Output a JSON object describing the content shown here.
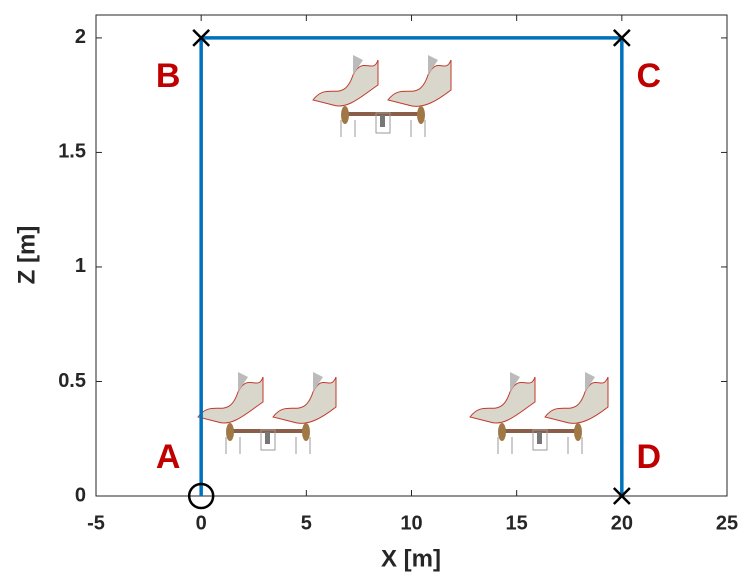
{
  "chart_data": {
    "type": "line",
    "x_label": "X [m]",
    "y_label": "Z [m]",
    "x": [
      0,
      0,
      20,
      20
    ],
    "y": [
      0,
      2,
      2,
      0
    ],
    "point_labels": [
      "A",
      "B",
      "C",
      "D"
    ],
    "markers": [
      "circle",
      "x",
      "x",
      "x"
    ],
    "color": "#0072bd",
    "xlim": [
      -5,
      25
    ],
    "xticks": [
      -5,
      0,
      5,
      10,
      15,
      20,
      25
    ],
    "ylim": [
      0,
      2.1
    ],
    "yticks": [
      0,
      0.5,
      1,
      1.5,
      2
    ]
  }
}
